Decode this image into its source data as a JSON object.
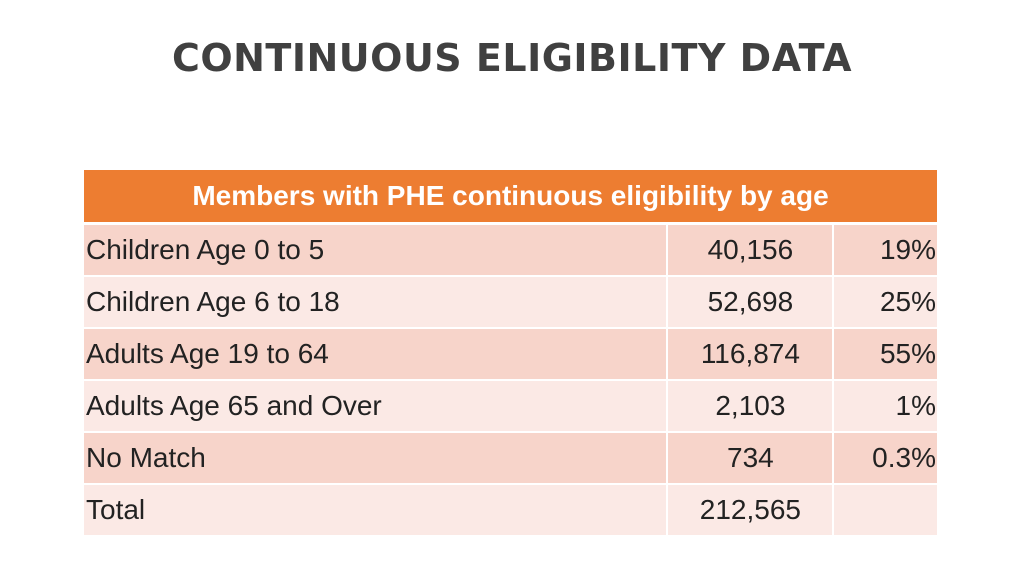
{
  "slide": {
    "title": "CONTINUOUS ELIGIBILITY DATA"
  },
  "table": {
    "header": "Members with PHE continuous eligibility by age",
    "rows": [
      {
        "label": "Children Age 0 to 5",
        "count": "40,156",
        "percent": "19%"
      },
      {
        "label": "Children Age 6 to 18",
        "count": "52,698",
        "percent": "25%"
      },
      {
        "label": "Adults Age 19 to 64",
        "count": "116,874",
        "percent": "55%"
      },
      {
        "label": "Adults Age 65 and Over",
        "count": "2,103",
        "percent": "1%"
      },
      {
        "label": "No Match",
        "count": "734",
        "percent": "0.3%"
      },
      {
        "label": "Total",
        "count": "212,565",
        "percent": ""
      }
    ]
  },
  "colors": {
    "header_background": "#ed7d31",
    "row_dark": "#f7d4ca",
    "row_light": "#fbe9e5",
    "title_text": "#404040"
  }
}
